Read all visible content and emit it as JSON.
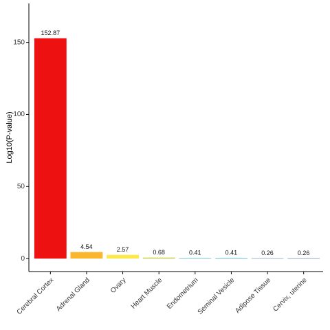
{
  "chart_data": {
    "type": "bar",
    "y_label": "Log10(P-value)",
    "categories": [
      "Cerebral Cortex",
      "Adrenal Gland",
      "Ovary",
      "Heart Muscle",
      "Endometrium",
      "Seminal Vesicle",
      "Adipose Tissue",
      "Cervix, uterine"
    ],
    "values": [
      152.87,
      4.54,
      2.57,
      0.68,
      0.41,
      0.41,
      0.26,
      0.26
    ],
    "colors": [
      "#ee1111",
      "#fbb62f",
      "#fde84b",
      "#c9c84a",
      "#62bccb",
      "#4ab3cc",
      "#4a7fb0",
      "#3d5e9a"
    ],
    "ylim": [
      -9,
      177
    ],
    "yticks": [
      0,
      50,
      100,
      150
    ],
    "grid": false
  }
}
